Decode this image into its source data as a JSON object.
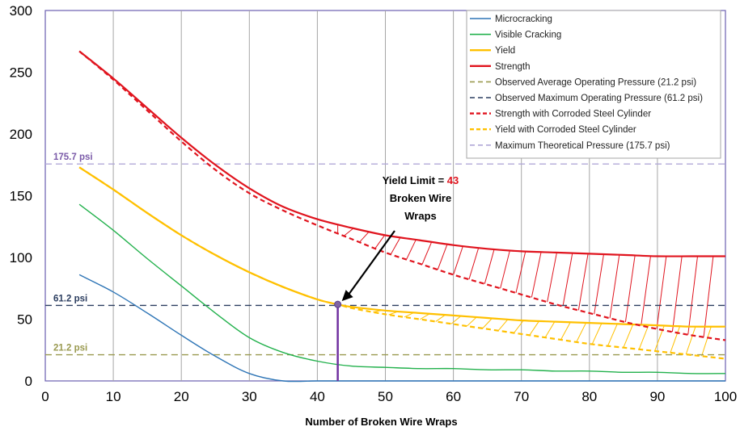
{
  "chart_data": {
    "type": "line",
    "xlabel": "Number of Broken Wire Wraps",
    "ylabel": "",
    "xlim": [
      0,
      100
    ],
    "ylim": [
      0,
      300
    ],
    "x_ticks": [
      "0",
      "10",
      "20",
      "30",
      "40",
      "50",
      "60",
      "70",
      "80",
      "90",
      "100"
    ],
    "y_ticks": [
      "0",
      "50",
      "100",
      "150",
      "200",
      "250",
      "300"
    ],
    "grid": "vertical",
    "legend_position": "top-right",
    "series": [
      {
        "name": "Microcracking",
        "color": "#2e75b6",
        "style": "solid",
        "x": [
          5,
          10,
          15,
          20,
          25,
          30,
          35,
          40,
          45,
          50,
          55,
          60,
          65,
          70,
          75,
          80,
          85,
          90,
          95,
          100
        ],
        "y": [
          86,
          72,
          55,
          37,
          20,
          6,
          0,
          0,
          0,
          0,
          0,
          0,
          0,
          0,
          0,
          0,
          0,
          0,
          0,
          0
        ]
      },
      {
        "name": "Visible Cracking",
        "color": "#22b14c",
        "style": "solid",
        "x": [
          5,
          10,
          15,
          20,
          25,
          30,
          35,
          40,
          45,
          50,
          55,
          60,
          65,
          70,
          75,
          80,
          85,
          90,
          95,
          100
        ],
        "y": [
          143,
          122,
          99,
          77,
          55,
          35,
          23,
          16,
          12,
          11,
          10,
          10,
          9,
          9,
          8,
          8,
          7,
          7,
          6,
          6
        ]
      },
      {
        "name": "Yield",
        "color": "#ffc000",
        "style": "solid",
        "x": [
          5,
          10,
          15,
          20,
          25,
          30,
          35,
          40,
          43,
          45,
          50,
          55,
          60,
          65,
          70,
          75,
          80,
          85,
          90,
          95,
          100
        ],
        "y": [
          173,
          155,
          136,
          118,
          102,
          88,
          76,
          66,
          62,
          60,
          57,
          55,
          53,
          51,
          49,
          48,
          47,
          46,
          45,
          44,
          44
        ]
      },
      {
        "name": "Strength",
        "color": "#e0141e",
        "style": "solid",
        "x": [
          5,
          10,
          15,
          20,
          25,
          30,
          35,
          40,
          45,
          50,
          55,
          60,
          65,
          70,
          75,
          80,
          85,
          90,
          95,
          100
        ],
        "y": [
          267,
          245,
          221,
          197,
          175,
          156,
          141,
          131,
          124,
          118,
          114,
          110,
          107,
          105,
          104,
          103,
          102,
          101,
          101,
          101
        ]
      },
      {
        "name": "Observed Average Operating Pressure (21.2 psi)",
        "color": "#9a9a50",
        "style": "dashed",
        "x": [
          0,
          100
        ],
        "y": [
          21.2,
          21.2
        ]
      },
      {
        "name": "Observed Maximum Operating Pressure (61.2 psi)",
        "color": "#2c3e60",
        "style": "dashed",
        "x": [
          0,
          100
        ],
        "y": [
          61.2,
          61.2
        ]
      },
      {
        "name": "Strength with Corroded Steel Cylinder",
        "color": "#e0141e",
        "style": "dashed",
        "x": [
          5,
          10,
          15,
          20,
          25,
          30,
          35,
          40,
          45,
          50,
          55,
          60,
          65,
          70,
          75,
          80,
          85,
          90,
          95,
          100
        ],
        "y": [
          267,
          244,
          219,
          194,
          171,
          152,
          138,
          126,
          115,
          104,
          95,
          86,
          78,
          70,
          62,
          55,
          48,
          42,
          37,
          33
        ]
      },
      {
        "name": "Yield with Corroded Steel Cylinder",
        "color": "#ffc000",
        "style": "dashed",
        "x": [
          5,
          10,
          15,
          20,
          25,
          30,
          35,
          40,
          43,
          45,
          50,
          55,
          60,
          65,
          70,
          75,
          80,
          85,
          90,
          95,
          100
        ],
        "y": [
          173,
          155,
          136,
          118,
          102,
          88,
          76,
          66,
          62,
          59,
          54,
          50,
          46,
          42,
          38,
          34,
          30,
          27,
          24,
          21,
          18
        ]
      },
      {
        "name": "Maximum Theoretical Pressure (175.7 psi)",
        "color": "#b0a8d8",
        "style": "dashed",
        "x": [
          0,
          100
        ],
        "y": [
          175.7,
          175.7
        ]
      }
    ],
    "reference_labels": [
      {
        "text": "175.7 psi",
        "y": 175.7,
        "color": "#7a5aa8"
      },
      {
        "text": "61.2 psi",
        "y": 61.2,
        "color": "#2c3e60"
      },
      {
        "text": "21.2 psi",
        "y": 21.2,
        "color": "#9a9a50"
      }
    ],
    "annotation": {
      "prefix": "Yield Limit = ",
      "value": "43",
      "line2": "Broken Wire",
      "line3": "Wraps",
      "x": 43,
      "y": 62,
      "value_color": "#e0141e"
    },
    "marker_line": {
      "x": 43,
      "y_from": 0,
      "y_to": 62,
      "color": "#7030a0"
    }
  }
}
